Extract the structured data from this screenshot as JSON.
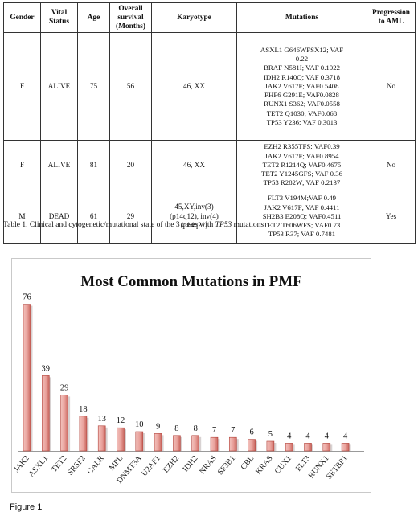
{
  "table": {
    "headers": [
      "Gender",
      "Vital Status",
      "Age",
      "Overall survival (Months)",
      "Karyotype",
      "Mutations",
      "Progression to AML"
    ],
    "rows": [
      {
        "gender": "F",
        "vital_status": "ALIVE",
        "age": "75",
        "survival": "56",
        "karyotype": [
          "46, XX"
        ],
        "mutations": [
          "ASXL1 G646WFSX12; VAF",
          "0.22",
          "BRAF N581I; VAF 0.1022",
          "IDH2 R140Q; VAF 0.3718",
          "JAK2 V617F; VAF0.5408",
          "PHF6 G291E; VAF0.0828",
          "RUNX1 S362; VAF0.0558",
          "TET2 Q1030; VAF0.068",
          "TP53 Y236; VAF 0.3013"
        ],
        "progression": "No"
      },
      {
        "gender": "F",
        "vital_status": "ALIVE",
        "age": "81",
        "survival": "20",
        "karyotype": [
          "46, XX"
        ],
        "mutations": [
          "EZH2 R355TFS; VAF0.39",
          "JAK2 V617F; VAF0.8954",
          "TET2 R1214Q; VAF0.4675",
          "TET2 Y1245GFS; VAF 0.36",
          "TP53  R282W; VAF 0.2137"
        ],
        "progression": "No"
      },
      {
        "gender": "M",
        "vital_status": "DEAD",
        "age": "61",
        "survival": "29",
        "karyotype": [
          "45,XY,inv(3)",
          "(p14q12), inv(4)",
          "(p14q21)"
        ],
        "mutations": [
          "FLT3 V194M;VAF 0.49",
          "JAK2 V617F; VAF 0.4411",
          "SH2B3 E208Q; VAF0.4511",
          "TET2 T606WFS; VAF0.73",
          "TP53 R37; VAF 0.7481"
        ],
        "progression": "Yes"
      }
    ]
  },
  "caption": {
    "prefix": "Table 1. Clinical and cytogenetic/mutational state of the 3 cases with ",
    "italic": "TP53",
    "suffix": " mutations"
  },
  "chart_data": {
    "type": "bar",
    "title": "Most  Common Mutations in PMF",
    "categories": [
      "JAK2",
      "ASXL1",
      "TET2",
      "SRSF2",
      "CALR",
      "MPL",
      "DNMT3A",
      "U2AF1",
      "EZH2",
      "IDH2",
      "NRAS",
      "SF3B1",
      "CBL",
      "KRAS",
      "CUX1",
      "FLT3",
      "RUNX1",
      "SETBP1"
    ],
    "values": [
      76,
      39,
      29,
      18,
      13,
      12,
      10,
      9,
      8,
      8,
      7,
      7,
      6,
      5,
      4,
      4,
      4,
      4
    ],
    "ylim": [
      0,
      80
    ],
    "grid": false,
    "legend": "none",
    "bar_color": "#e8a09a",
    "bar_edge": "#b2413a"
  },
  "figure_label": "Figure 1"
}
